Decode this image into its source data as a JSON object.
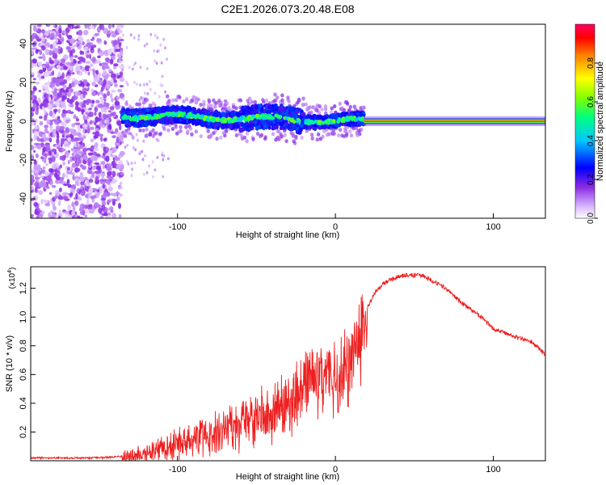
{
  "chart_data": [
    {
      "type": "heatmap",
      "title": "C2E1.2026.073.20.48.E08",
      "xlabel": "Height of straight line (km)",
      "ylabel": "Frequency (Hz)",
      "xlim": [
        -193,
        133
      ],
      "ylim": [
        -50,
        50
      ],
      "xticks": [
        -100,
        0,
        100
      ],
      "yticks": [
        -40,
        -20,
        0,
        20,
        40
      ],
      "colorbar": {
        "label": "Normalized spectral amplitude",
        "range": [
          0,
          1
        ],
        "ticks": [
          "0.0",
          "0.2",
          "0.4",
          "0.6",
          "0.8"
        ]
      },
      "regions": [
        {
          "name": "noise",
          "x": [
            -193,
            -135
          ],
          "freq": [
            -50,
            50
          ],
          "amplitude": 0.12
        },
        {
          "name": "scattered-echo",
          "x": [
            -135,
            18
          ],
          "freq": [
            -8,
            10
          ],
          "amplitude": 0.4
        },
        {
          "name": "stable-line",
          "x": [
            18,
            133
          ],
          "freq": [
            0,
            0
          ],
          "amplitude": 1.0
        }
      ]
    },
    {
      "type": "line",
      "xlabel": "Height of straight line (km)",
      "ylabel": "SNR (10 * v/v)",
      "y_multiplier": "(x10",
      "y_multiplier_exp": "4",
      "xlim": [
        -193,
        133
      ],
      "ylim": [
        0,
        1.35
      ],
      "xticks": [
        -100,
        0,
        100
      ],
      "yticks": [
        "0.2",
        "0.4",
        "0.6",
        "0.8",
        "1.0",
        "1.2"
      ],
      "series": [
        {
          "name": "SNR",
          "color": "#ee2020",
          "x": [
            -193,
            -150,
            -135,
            -120,
            -110,
            -100,
            -90,
            -80,
            -70,
            -60,
            -50,
            -40,
            -30,
            -25,
            -20,
            -15,
            -10,
            -5,
            0,
            5,
            10,
            15,
            20,
            25,
            30,
            35,
            40,
            45,
            50,
            55,
            60,
            65,
            70,
            75,
            80,
            85,
            90,
            95,
            100,
            105,
            110,
            115,
            120,
            125,
            130,
            133
          ],
          "values": [
            0.02,
            0.02,
            0.03,
            0.06,
            0.1,
            0.13,
            0.16,
            0.2,
            0.24,
            0.28,
            0.33,
            0.38,
            0.44,
            0.5,
            0.56,
            0.6,
            0.62,
            0.64,
            0.65,
            0.68,
            0.73,
            0.9,
            1.06,
            1.17,
            1.23,
            1.26,
            1.28,
            1.29,
            1.29,
            1.29,
            1.26,
            1.23,
            1.2,
            1.15,
            1.1,
            1.06,
            1.02,
            0.97,
            0.92,
            0.9,
            0.88,
            0.86,
            0.84,
            0.82,
            0.77,
            0.74
          ]
        }
      ]
    }
  ]
}
